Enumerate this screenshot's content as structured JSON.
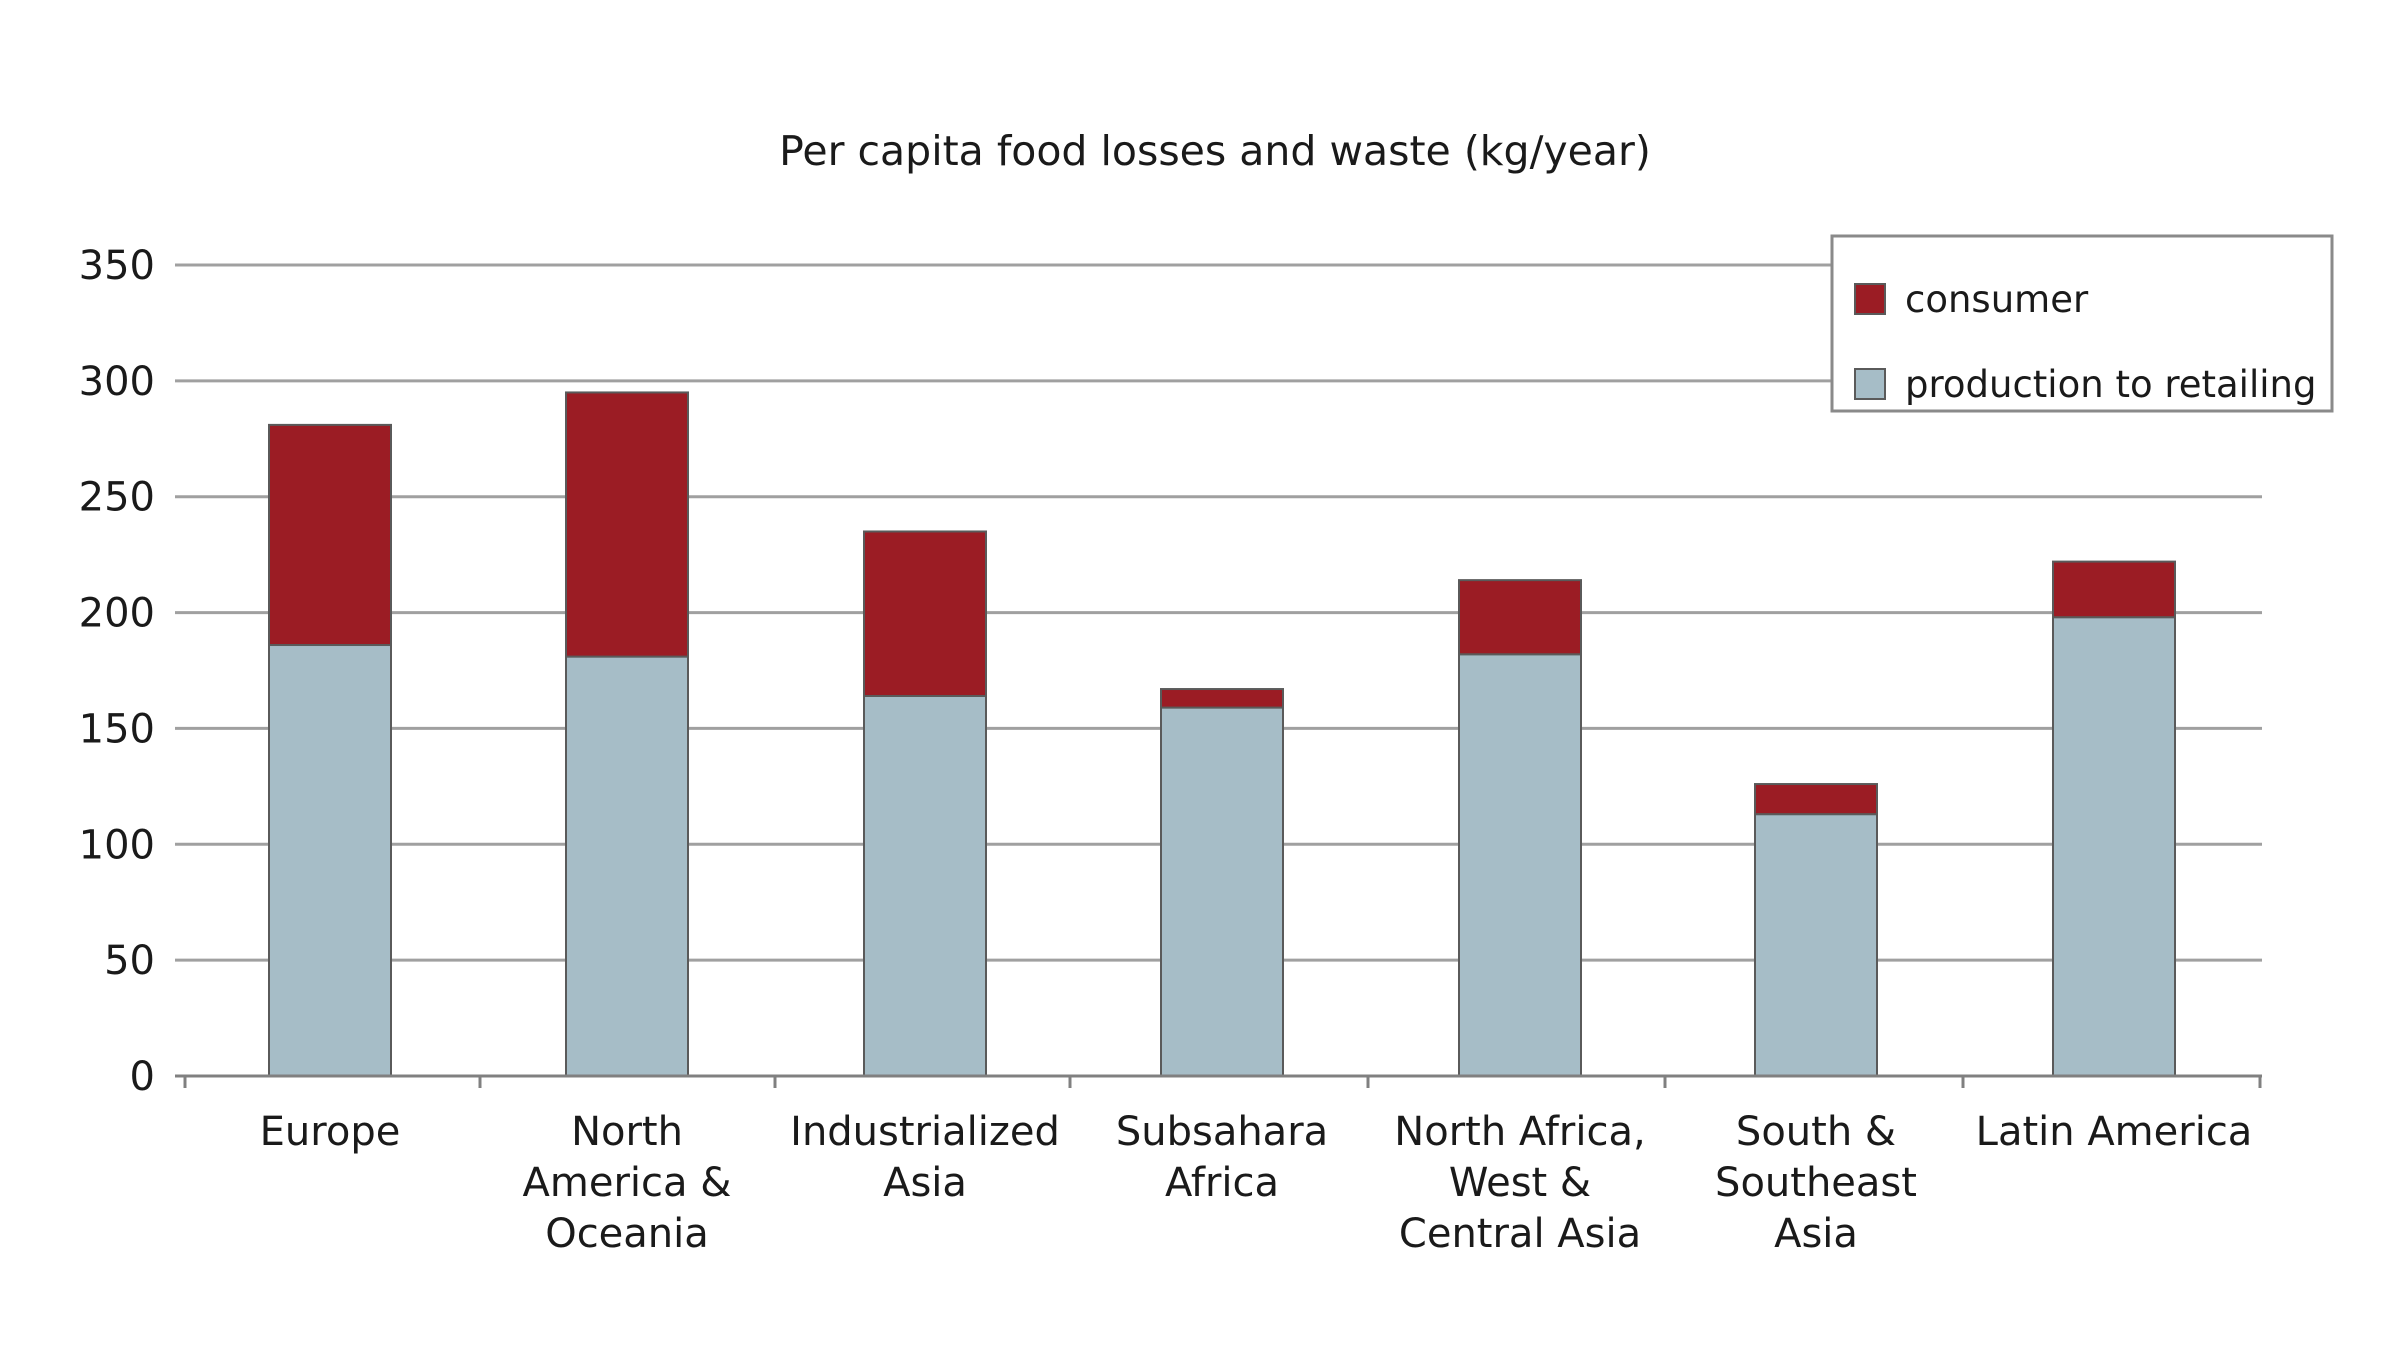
{
  "chart_data": {
    "type": "bar",
    "stacked": true,
    "title": "Per capita food losses and waste (kg/year)",
    "xlabel": "",
    "ylabel": "",
    "ylim": [
      0,
      350
    ],
    "yticks": [
      0,
      50,
      100,
      150,
      200,
      250,
      300,
      350
    ],
    "grid": true,
    "legend_position": "top-right",
    "categories": [
      [
        "Europe"
      ],
      [
        "North",
        "America &",
        "Oceania"
      ],
      [
        "Industrialized",
        "Asia"
      ],
      [
        "Subsahara",
        "Africa"
      ],
      [
        "North Africa,",
        "West &",
        "Central Asia"
      ],
      [
        "South &",
        "Southeast",
        "Asia"
      ],
      [
        "Latin America"
      ]
    ],
    "series": [
      {
        "name": "production to retailing",
        "color": "#a6bdc7",
        "values": [
          186,
          181,
          164,
          159,
          182,
          113,
          198
        ]
      },
      {
        "name": "consumer",
        "color": "#9b1c24",
        "values": [
          95,
          114,
          71,
          8,
          32,
          13,
          24
        ]
      }
    ],
    "legend_order": [
      "consumer",
      "production to retailing"
    ],
    "colors": {
      "grid": "#a0a0a0",
      "axis": "#808080",
      "bar_stroke": "#5a5a5a"
    }
  }
}
